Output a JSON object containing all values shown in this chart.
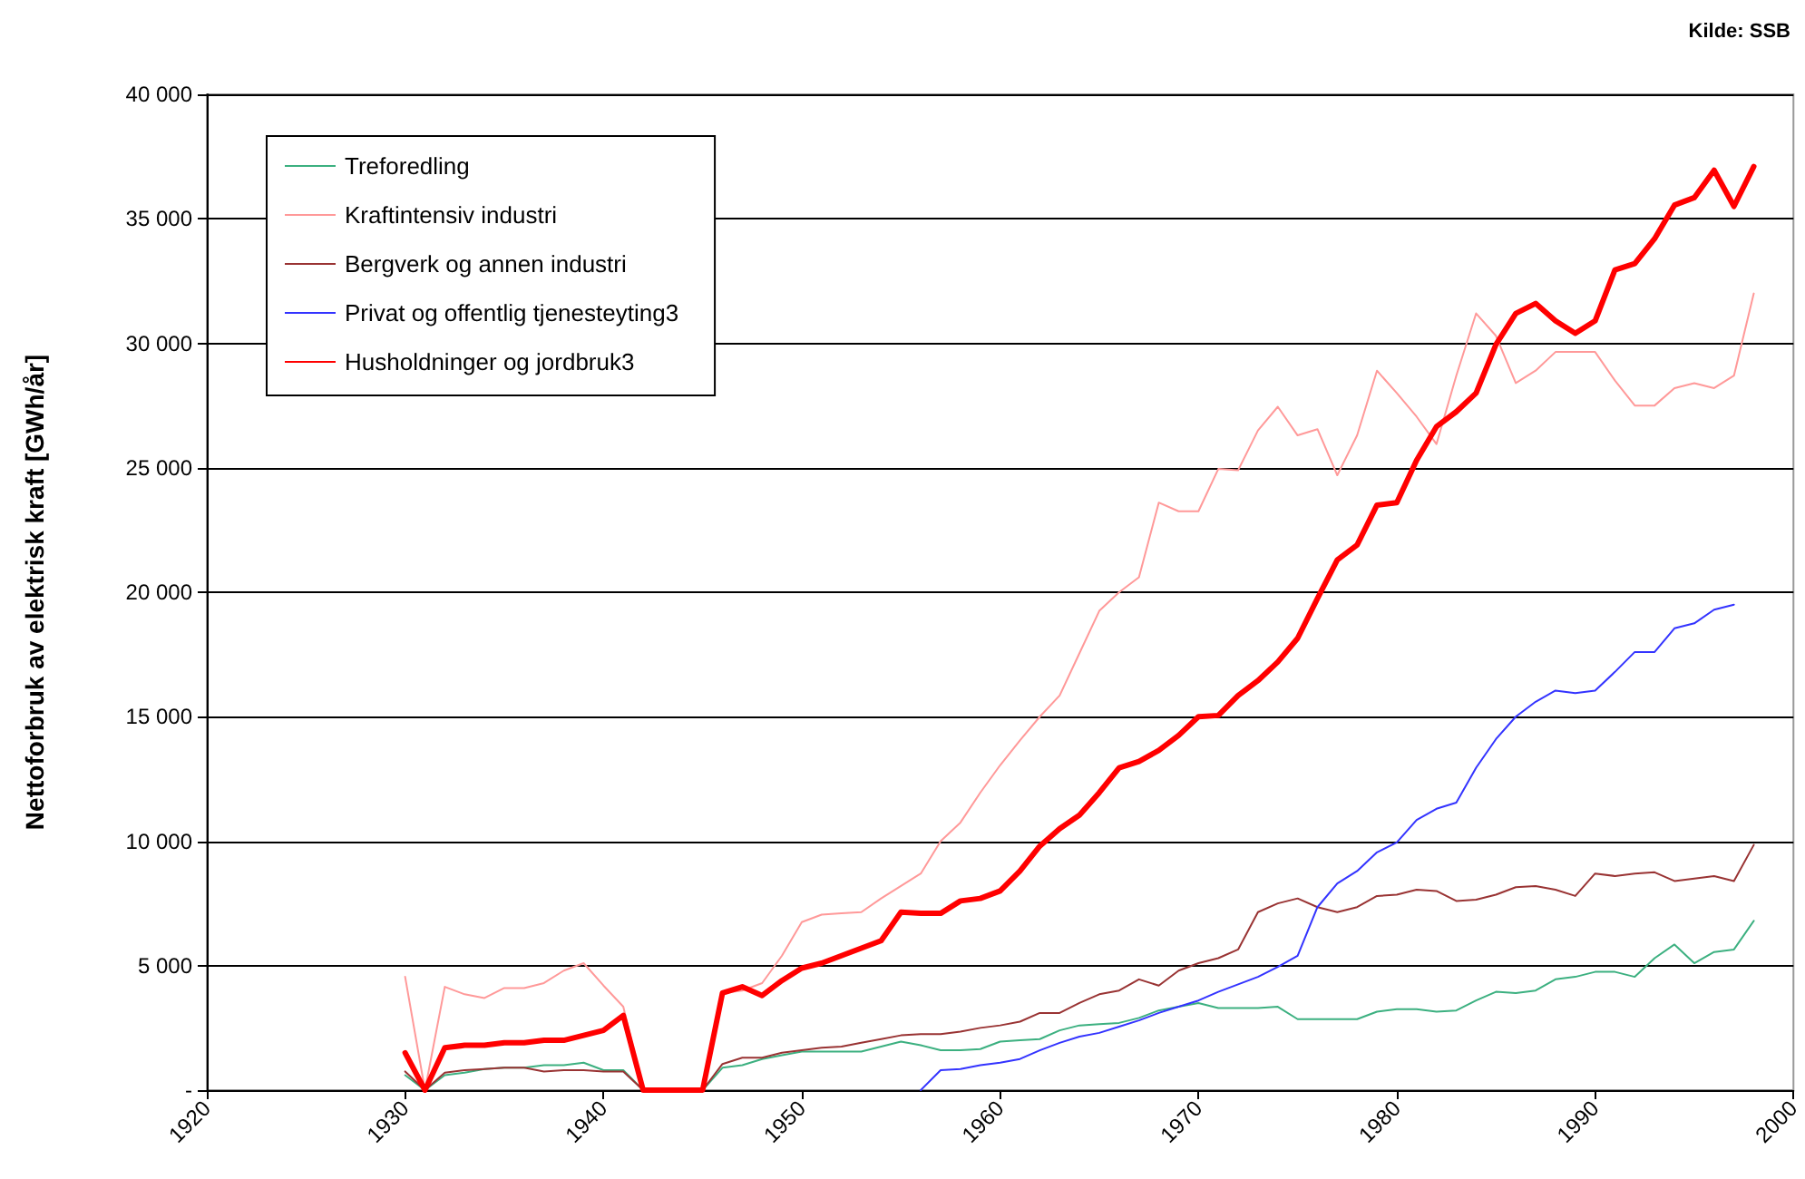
{
  "chart_data": {
    "type": "line",
    "ylabel": "Nettoforbruk av elektrisk kraft [GWh/år]",
    "annotations": [
      "Kilde: SSB"
    ],
    "x": [
      1930,
      1931,
      1932,
      1933,
      1934,
      1935,
      1936,
      1937,
      1938,
      1939,
      1940,
      1941,
      1942,
      1943,
      1944,
      1945,
      1946,
      1947,
      1948,
      1949,
      1950,
      1951,
      1952,
      1953,
      1954,
      1955,
      1956,
      1957,
      1958,
      1959,
      1960,
      1961,
      1962,
      1963,
      1964,
      1965,
      1966,
      1967,
      1968,
      1969,
      1970,
      1971,
      1972,
      1973,
      1974,
      1975,
      1976,
      1977,
      1978,
      1979,
      1980,
      1981,
      1982,
      1983,
      1984,
      1985,
      1986,
      1987,
      1988,
      1989,
      1990,
      1991,
      1992,
      1993,
      1994,
      1995,
      1996,
      1997,
      1998
    ],
    "series": [
      {
        "name": "Treforedling",
        "color": "#3cb080",
        "values": [
          600,
          0,
          600,
          700,
          850,
          900,
          900,
          1000,
          1000,
          1100,
          800,
          800,
          0,
          0,
          0,
          0,
          900,
          1000,
          1250,
          1400,
          1550,
          1550,
          1550,
          1550,
          1750,
          1950,
          1800,
          1600,
          1600,
          1650,
          1950,
          2000,
          2050,
          2400,
          2600,
          2650,
          2700,
          2900,
          3200,
          3350,
          3500,
          3300,
          3300,
          3300,
          3350,
          2850,
          2850,
          2850,
          2850,
          3150,
          3250,
          3250,
          3150,
          3200,
          3600,
          3950,
          3900,
          4000,
          4450,
          4550,
          4750,
          4750,
          4550,
          5300,
          5850,
          5100,
          5550,
          5650,
          6800
        ]
      },
      {
        "name": "Kraftintensiv industri",
        "color": "#ff9999",
        "values": [
          4550,
          0,
          4150,
          3850,
          3700,
          4100,
          4100,
          4300,
          4800,
          5100,
          4200,
          3350,
          0,
          0,
          0,
          0,
          3900,
          4000,
          4300,
          5400,
          6750,
          7050,
          7100,
          7150,
          7700,
          8200,
          8700,
          10000,
          10750,
          11950,
          13050,
          14050,
          15000,
          15850,
          17550,
          19250,
          20000,
          20600,
          23600,
          23250,
          23250,
          24950,
          24900,
          26500,
          27450,
          26300,
          26550,
          24700,
          26300,
          28900,
          28000,
          27050,
          25950,
          28700,
          31200,
          30300,
          28400,
          28900,
          29650,
          29650,
          29650,
          28500,
          27500,
          27500,
          28200,
          28400,
          28200,
          28700,
          32000
        ]
      },
      {
        "name": "Bergverk og annen industri",
        "color": "#993333",
        "values": [
          750,
          0,
          700,
          800,
          850,
          900,
          900,
          750,
          800,
          800,
          750,
          750,
          0,
          0,
          0,
          0,
          1050,
          1300,
          1300,
          1500,
          1600,
          1700,
          1750,
          1900,
          2050,
          2200,
          2250,
          2250,
          2350,
          2500,
          2600,
          2750,
          3100,
          3100,
          3500,
          3850,
          4000,
          4450,
          4200,
          4800,
          5100,
          5300,
          5650,
          7150,
          7500,
          7700,
          7350,
          7150,
          7350,
          7800,
          7850,
          8050,
          8000,
          7600,
          7650,
          7850,
          8150,
          8200,
          8050,
          7800,
          8700,
          8600,
          8700,
          8750,
          8400,
          8500,
          8600,
          8400,
          9850
        ]
      },
      {
        "name": "Privat og offentlig tjenesteyting3",
        "color": "#3333ff",
        "values": [
          null,
          null,
          null,
          null,
          null,
          null,
          null,
          null,
          null,
          null,
          null,
          null,
          null,
          null,
          null,
          null,
          null,
          null,
          null,
          null,
          null,
          null,
          null,
          null,
          null,
          null,
          0,
          800,
          850,
          1000,
          1100,
          1250,
          1600,
          1900,
          2150,
          2300,
          2550,
          2800,
          3100,
          3350,
          3600,
          3950,
          4250,
          4550,
          4950,
          5400,
          7350,
          8300,
          8800,
          9550,
          9950,
          10850,
          11300,
          11550,
          12950,
          14100,
          15000,
          15600,
          16050,
          15950,
          16050,
          16800,
          17600,
          17600,
          18550,
          18750,
          19300,
          19500,
          null
        ]
      },
      {
        "name": "Husholdninger og jordbruk3",
        "color": "#ff0000",
        "values": [
          1500,
          0,
          1700,
          1800,
          1800,
          1900,
          1900,
          2000,
          2000,
          2200,
          2400,
          3000,
          0,
          0,
          0,
          0,
          3900,
          4150,
          3800,
          4400,
          4900,
          5100,
          5400,
          5700,
          6000,
          7150,
          7100,
          7100,
          7600,
          7700,
          8000,
          8800,
          9800,
          10500,
          11050,
          11950,
          12950,
          13200,
          13650,
          14250,
          15000,
          15050,
          15850,
          16450,
          17200,
          18150,
          19750,
          21300,
          21900,
          23500,
          23600,
          25300,
          26650,
          27250,
          28000,
          29950,
          31200,
          31600,
          30900,
          30400,
          30900,
          32950,
          33200,
          34200,
          35550,
          35850,
          36950,
          35500,
          37100
        ]
      }
    ],
    "xlim": [
      1920,
      2000
    ],
    "xticks": [
      1920,
      1930,
      1940,
      1950,
      1960,
      1970,
      1980,
      1990,
      2000
    ],
    "ylim": [
      0,
      40000
    ],
    "yticks": [
      {
        "value": 0,
        "label": "-"
      },
      {
        "value": 5000,
        "label": "5 000"
      },
      {
        "value": 10000,
        "label": "10 000"
      },
      {
        "value": 15000,
        "label": "15 000"
      },
      {
        "value": 20000,
        "label": "20 000"
      },
      {
        "value": 25000,
        "label": "25 000"
      },
      {
        "value": 30000,
        "label": "30 000"
      },
      {
        "value": 35000,
        "label": "35 000"
      },
      {
        "value": 40000,
        "label": "40 000"
      }
    ],
    "grid": "y",
    "legend": "top left",
    "marker": "none",
    "line_style": "solid"
  }
}
